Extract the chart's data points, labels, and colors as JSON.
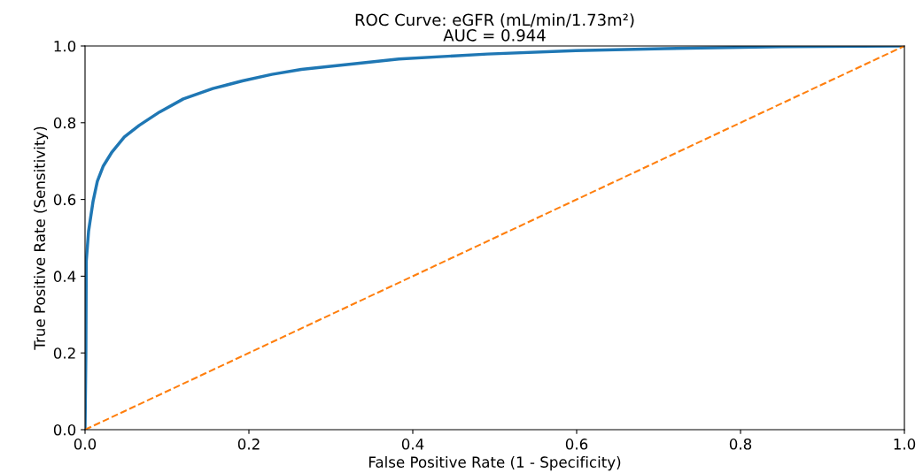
{
  "chart_data": {
    "type": "line",
    "title": "ROC Curve: eGFR (mL/min/1.73m²)\nAUC = 0.944",
    "xlabel": "False Positive Rate (1 - Specificity)",
    "ylabel": "True Positive Rate (Sensitivity)",
    "series": [
      {
        "color": "#1f77b4",
        "line_style": "solid",
        "x": [
          0,
          0.001,
          0.0015,
          0.0043,
          0.0097,
          0.015,
          0.022,
          0.033,
          0.048,
          0.066,
          0.091,
          0.12,
          0.156,
          0.192,
          0.228,
          0.264,
          0.383,
          0.491,
          0.599,
          0.707,
          0.85,
          1
        ],
        "values": [
          0,
          0.2,
          0.44,
          0.517,
          0.594,
          0.647,
          0.686,
          0.724,
          0.763,
          0.793,
          0.828,
          0.862,
          0.889,
          0.909,
          0.926,
          0.939,
          0.966,
          0.979,
          0.988,
          0.993,
          0.998,
          1
        ]
      },
      {
        "color": "#ff7f0e",
        "line_style": "dashed",
        "x": [
          0,
          1
        ],
        "values": [
          0,
          1
        ]
      }
    ],
    "xlim": [
      0,
      1
    ],
    "ylim": [
      0,
      1
    ],
    "xticks": [
      {
        "value": 0,
        "label": "0.0"
      },
      {
        "value": 0.2,
        "label": "0.2"
      },
      {
        "value": 0.4,
        "label": "0.4"
      },
      {
        "value": 0.6,
        "label": "0.6"
      },
      {
        "value": 0.8,
        "label": "0.8"
      },
      {
        "value": 1,
        "label": "1.0"
      }
    ],
    "yticks": [
      {
        "value": 0,
        "label": "0.0"
      },
      {
        "value": 0.2,
        "label": "0.2"
      },
      {
        "value": 0.4,
        "label": "0.4"
      },
      {
        "value": 0.6,
        "label": "0.6"
      },
      {
        "value": 0.8,
        "label": "0.8"
      },
      {
        "value": 1,
        "label": "1.0"
      }
    ],
    "grid": false,
    "legend": false
  }
}
